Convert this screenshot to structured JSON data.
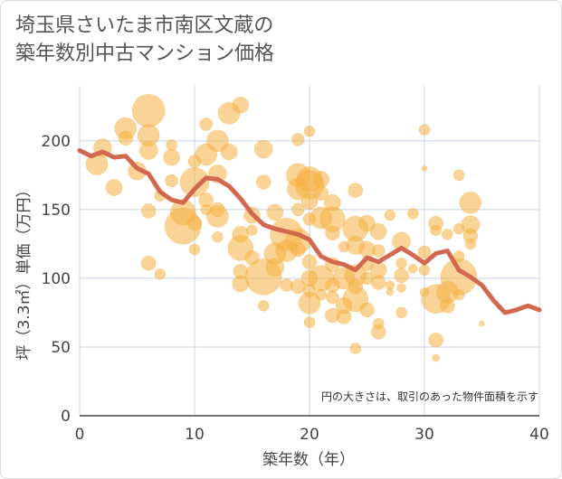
{
  "title_lines": [
    "埼玉県さいたま市南区文蔵の",
    "築年数別中古マンション価格"
  ],
  "chart_data": {
    "type": "scatter",
    "xlabel": "築年数（年）",
    "ylabel": "坪（3.3㎡）単価（万円）",
    "xlim": [
      0,
      40
    ],
    "ylim": [
      0,
      240
    ],
    "x_ticks": [
      "0",
      "10",
      "20",
      "30",
      "40"
    ],
    "y_ticks": [
      "0",
      "50",
      "100",
      "150",
      "200"
    ],
    "grid": true,
    "note": "円の大きさは、取引のあった物件面積を示す",
    "colors": {
      "bubble": "#f5b041",
      "line": "#d2694f",
      "grid": "#c8d4e4",
      "axis": "#444444"
    },
    "bubbles": [
      [
        1.5,
        183,
        12
      ],
      [
        2,
        195,
        10
      ],
      [
        3,
        166,
        9
      ],
      [
        4,
        202,
        8
      ],
      [
        4,
        209,
        12
      ],
      [
        5,
        178,
        10
      ],
      [
        6,
        222,
        18
      ],
      [
        6,
        204,
        12
      ],
      [
        6,
        193,
        10
      ],
      [
        6,
        149,
        8
      ],
      [
        6,
        111,
        8
      ],
      [
        7,
        103,
        6
      ],
      [
        7,
        160,
        6
      ],
      [
        8,
        188,
        9
      ],
      [
        8,
        197,
        6
      ],
      [
        8,
        171,
        7
      ],
      [
        9,
        148,
        14
      ],
      [
        9,
        138,
        20
      ],
      [
        10,
        121,
        6
      ],
      [
        10,
        140,
        8
      ],
      [
        10,
        170,
        16
      ],
      [
        10,
        185,
        7
      ],
      [
        11,
        212,
        7
      ],
      [
        11,
        157,
        8
      ],
      [
        11,
        150,
        6
      ],
      [
        11,
        190,
        12
      ],
      [
        12,
        200,
        12
      ],
      [
        12,
        176,
        10
      ],
      [
        12,
        150,
        8
      ],
      [
        12,
        130,
        6
      ],
      [
        12,
        145,
        12
      ],
      [
        13,
        220,
        12
      ],
      [
        13,
        192,
        9
      ],
      [
        14,
        226,
        9
      ],
      [
        14,
        132,
        9
      ],
      [
        14,
        122,
        14
      ],
      [
        14,
        105,
        8
      ],
      [
        14,
        96,
        9
      ],
      [
        15,
        146,
        9
      ],
      [
        15,
        135,
        6
      ],
      [
        15,
        115,
        8
      ],
      [
        16,
        194,
        10
      ],
      [
        16,
        170,
        8
      ],
      [
        16,
        101,
        20
      ],
      [
        16,
        80,
        6
      ],
      [
        17,
        148,
        9
      ],
      [
        17,
        118,
        12
      ],
      [
        17,
        108,
        10
      ],
      [
        18,
        132,
        18
      ],
      [
        18,
        120,
        12
      ],
      [
        18,
        95,
        7
      ],
      [
        19,
        201,
        7
      ],
      [
        19,
        175,
        13
      ],
      [
        19,
        165,
        12
      ],
      [
        19,
        150,
        7
      ],
      [
        19,
        127,
        14
      ],
      [
        19,
        121,
        8
      ],
      [
        19,
        94,
        8
      ],
      [
        20,
        207,
        6
      ],
      [
        20,
        172,
        14
      ],
      [
        20,
        168,
        16
      ],
      [
        20,
        156,
        9
      ],
      [
        20,
        143,
        7
      ],
      [
        20,
        112,
        8
      ],
      [
        20,
        100,
        9
      ],
      [
        20,
        91,
        7
      ],
      [
        20,
        82,
        12
      ],
      [
        20,
        68,
        6
      ],
      [
        21,
        172,
        9
      ],
      [
        21,
        162,
        8
      ],
      [
        21,
        144,
        12
      ],
      [
        21,
        100,
        14
      ],
      [
        21,
        88,
        6
      ],
      [
        22,
        155,
        9
      ],
      [
        22,
        143,
        14
      ],
      [
        22,
        133,
        8
      ],
      [
        22,
        110,
        8
      ],
      [
        22,
        95,
        8
      ],
      [
        22,
        86,
        7
      ],
      [
        22,
        73,
        8
      ],
      [
        23,
        123,
        6
      ],
      [
        23,
        100,
        12
      ],
      [
        23,
        80,
        9
      ],
      [
        23,
        72,
        8
      ],
      [
        24,
        164,
        8
      ],
      [
        24,
        136,
        14
      ],
      [
        24,
        124,
        10
      ],
      [
        24,
        102,
        12
      ],
      [
        24,
        94,
        8
      ],
      [
        24,
        85,
        14
      ],
      [
        24,
        49,
        6
      ],
      [
        25,
        140,
        9
      ],
      [
        25,
        121,
        9
      ],
      [
        25,
        110,
        7
      ],
      [
        25,
        100,
        7
      ],
      [
        25,
        77,
        8
      ],
      [
        26,
        134,
        9
      ],
      [
        26,
        120,
        7
      ],
      [
        26,
        106,
        9
      ],
      [
        26,
        97,
        8
      ],
      [
        26,
        67,
        6
      ],
      [
        26,
        61,
        8
      ],
      [
        27,
        146,
        6
      ],
      [
        27,
        95,
        5
      ],
      [
        27,
        90,
        4
      ],
      [
        28,
        127,
        10
      ],
      [
        28,
        111,
        6
      ],
      [
        28,
        102,
        8
      ],
      [
        28,
        93,
        5
      ],
      [
        28,
        75,
        6
      ],
      [
        29,
        147,
        6
      ],
      [
        29,
        107,
        5
      ],
      [
        30,
        208,
        6
      ],
      [
        30,
        180,
        3
      ],
      [
        30,
        119,
        7
      ],
      [
        30,
        106,
        6
      ],
      [
        30,
        90,
        5
      ],
      [
        31,
        140,
        8
      ],
      [
        31,
        135,
        6
      ],
      [
        31,
        85,
        16
      ],
      [
        31,
        55,
        8
      ],
      [
        31,
        42,
        4
      ],
      [
        32,
        132,
        6
      ],
      [
        32,
        90,
        12
      ],
      [
        32,
        80,
        8
      ],
      [
        33,
        175,
        6
      ],
      [
        33,
        136,
        6
      ],
      [
        33,
        116,
        6
      ],
      [
        33,
        101,
        20
      ],
      [
        33,
        88,
        6
      ],
      [
        34,
        155,
        12
      ],
      [
        34,
        139,
        10
      ],
      [
        34,
        131,
        8
      ],
      [
        34,
        125,
        6
      ],
      [
        35,
        67,
        3
      ]
    ],
    "trend": [
      [
        0,
        193
      ],
      [
        1,
        189
      ],
      [
        2,
        192
      ],
      [
        3,
        188
      ],
      [
        4,
        189
      ],
      [
        5,
        180
      ],
      [
        6,
        176
      ],
      [
        7,
        163
      ],
      [
        8,
        157
      ],
      [
        9,
        155
      ],
      [
        10,
        165
      ],
      [
        11,
        173
      ],
      [
        12,
        172
      ],
      [
        13,
        167
      ],
      [
        14,
        158
      ],
      [
        15,
        147
      ],
      [
        16,
        139
      ],
      [
        17,
        136
      ],
      [
        18,
        134
      ],
      [
        19,
        132
      ],
      [
        20,
        128
      ],
      [
        21,
        116
      ],
      [
        22,
        112
      ],
      [
        23,
        110
      ],
      [
        24,
        106
      ],
      [
        25,
        115
      ],
      [
        26,
        112
      ],
      [
        27,
        117
      ],
      [
        28,
        122
      ],
      [
        29,
        117
      ],
      [
        30,
        111
      ],
      [
        31,
        118
      ],
      [
        32,
        120
      ],
      [
        33,
        106
      ],
      [
        34,
        101
      ],
      [
        35,
        95
      ],
      [
        36,
        84
      ],
      [
        37,
        75
      ],
      [
        38,
        77
      ],
      [
        39,
        80
      ],
      [
        40,
        77
      ]
    ]
  }
}
